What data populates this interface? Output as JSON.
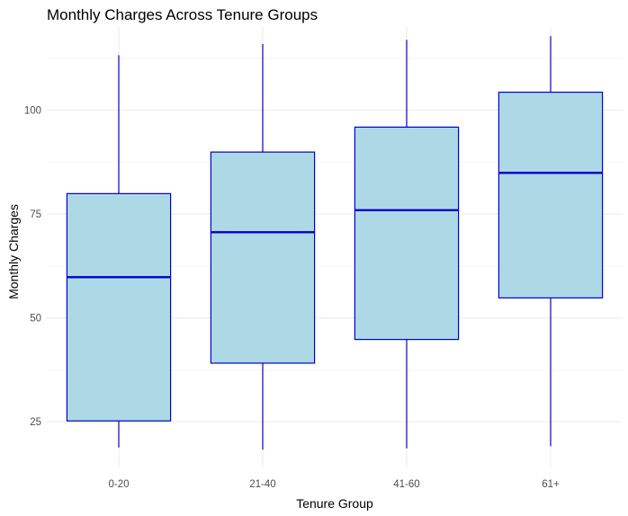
{
  "chart_data": {
    "type": "boxplot",
    "title": "Monthly Charges Across Tenure Groups",
    "xlabel": "Tenure Group",
    "ylabel": "Monthly Charges",
    "categories": [
      "0-20",
      "21-40",
      "41-60",
      "61+"
    ],
    "boxes": [
      {
        "category": "0-20",
        "whisker_low": 18.8,
        "q1": 25.2,
        "median": 59.8,
        "q3": 79.9,
        "whisker_high": 113.2
      },
      {
        "category": "21-40",
        "whisker_low": 18.3,
        "q1": 39.1,
        "median": 70.6,
        "q3": 89.9,
        "whisker_high": 115.9
      },
      {
        "category": "41-60",
        "whisker_low": 18.6,
        "q1": 44.8,
        "median": 75.9,
        "q3": 95.9,
        "whisker_high": 116.9
      },
      {
        "category": "61+",
        "whisker_low": 19.1,
        "q1": 54.8,
        "median": 84.9,
        "q3": 104.3,
        "whisker_high": 117.8
      }
    ],
    "yticks": [
      25,
      50,
      75,
      100
    ],
    "ylim": [
      14,
      120
    ],
    "grid": true,
    "legend": "none",
    "box_fill": "#add8e6",
    "box_outline": "#0000cd",
    "median_color": "#0000cd",
    "whisker_color": "#0000cd"
  }
}
